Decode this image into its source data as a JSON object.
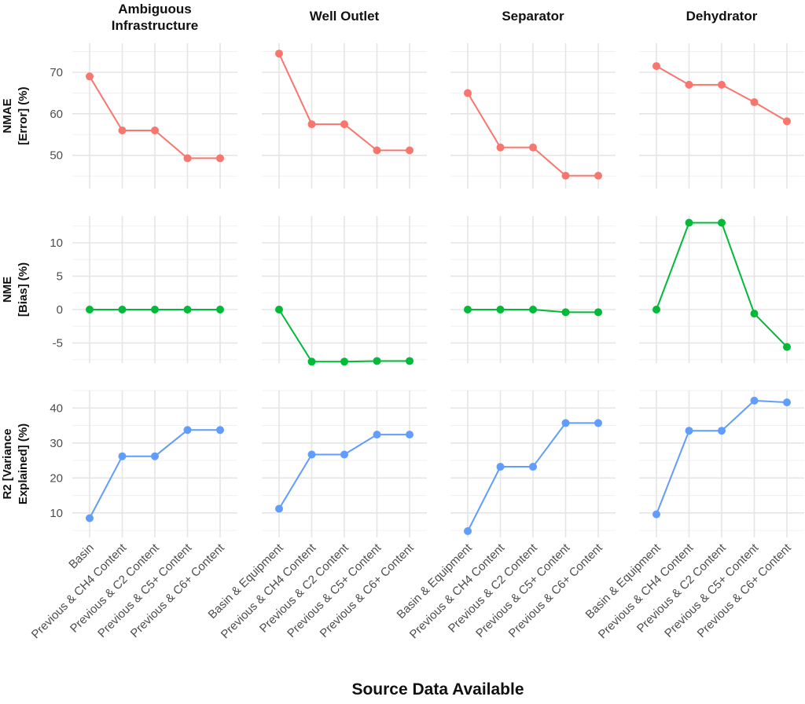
{
  "chart_data": {
    "type": "line",
    "xlabel": "Source Data Available",
    "panels": [
      {
        "title": "Ambiguous Infrastructure",
        "title_lines": [
          "Ambiguous",
          "Infrastructure"
        ],
        "categories": [
          "Basin",
          "Previous & CH4 Content",
          "Previous & C2 Content",
          "Previous & C5+ Content",
          "Previous & C6+ Content"
        ]
      },
      {
        "title": "Well Outlet",
        "title_lines": [
          "Well Outlet"
        ],
        "categories": [
          "Basin & Equipment",
          "Previous & CH4 Content",
          "Previous & C2 Content",
          "Previous & C5+ Content",
          "Previous & C6+ Content"
        ]
      },
      {
        "title": "Separator",
        "title_lines": [
          "Separator"
        ],
        "categories": [
          "Basin & Equipment",
          "Previous & CH4 Content",
          "Previous & C2 Content",
          "Previous & C5+ Content",
          "Previous & C6+ Content"
        ]
      },
      {
        "title": "Dehydrator",
        "title_lines": [
          "Dehydrator"
        ],
        "categories": [
          "Basin & Equipment",
          "Previous & CH4 Content",
          "Previous & C2 Content",
          "Previous & C5+ Content",
          "Previous & C6+ Content"
        ]
      }
    ],
    "metrics": [
      {
        "title": "NMAE [Error] (%)",
        "title_lines": [
          "NMAE",
          "[Error] (%)"
        ],
        "color": "#F8766D",
        "ylim": [
          42,
          77
        ],
        "yticks": [
          50,
          60,
          70
        ],
        "values": [
          [
            69.0,
            56.0,
            56.0,
            49.3,
            49.3
          ],
          [
            74.5,
            57.5,
            57.5,
            51.2,
            51.2
          ],
          [
            65.0,
            51.9,
            51.9,
            45.1,
            45.1
          ],
          [
            71.5,
            67.0,
            67.0,
            62.8,
            58.2
          ]
        ]
      },
      {
        "title": "NME [Bias] (%)",
        "title_lines": [
          "NME",
          "[Bias] (%)"
        ],
        "color": "#00BA38",
        "ylim": [
          -8,
          14
        ],
        "yticks": [
          -5,
          0,
          5,
          10
        ],
        "values": [
          [
            0.0,
            0.0,
            0.0,
            0.0,
            0.0
          ],
          [
            0.0,
            -7.8,
            -7.8,
            -7.7,
            -7.7
          ],
          [
            0.0,
            0.0,
            0.0,
            -0.4,
            -0.4
          ],
          [
            0.0,
            13.0,
            13.0,
            -0.6,
            -5.6
          ]
        ]
      },
      {
        "title": "R2 [Variance Explained] (%)",
        "title_lines": [
          "R2 [Variance",
          "Explained] (%)"
        ],
        "color": "#619CFF",
        "ylim": [
          3,
          45
        ],
        "yticks": [
          10,
          20,
          30,
          40
        ],
        "values": [
          [
            8.5,
            26.2,
            26.2,
            33.7,
            33.7
          ],
          [
            11.2,
            26.7,
            26.7,
            32.4,
            32.4
          ],
          [
            4.8,
            23.2,
            23.2,
            35.7,
            35.7
          ],
          [
            9.6,
            33.5,
            33.5,
            42.1,
            41.6
          ]
        ]
      }
    ],
    "grid": true,
    "legend": "none"
  }
}
